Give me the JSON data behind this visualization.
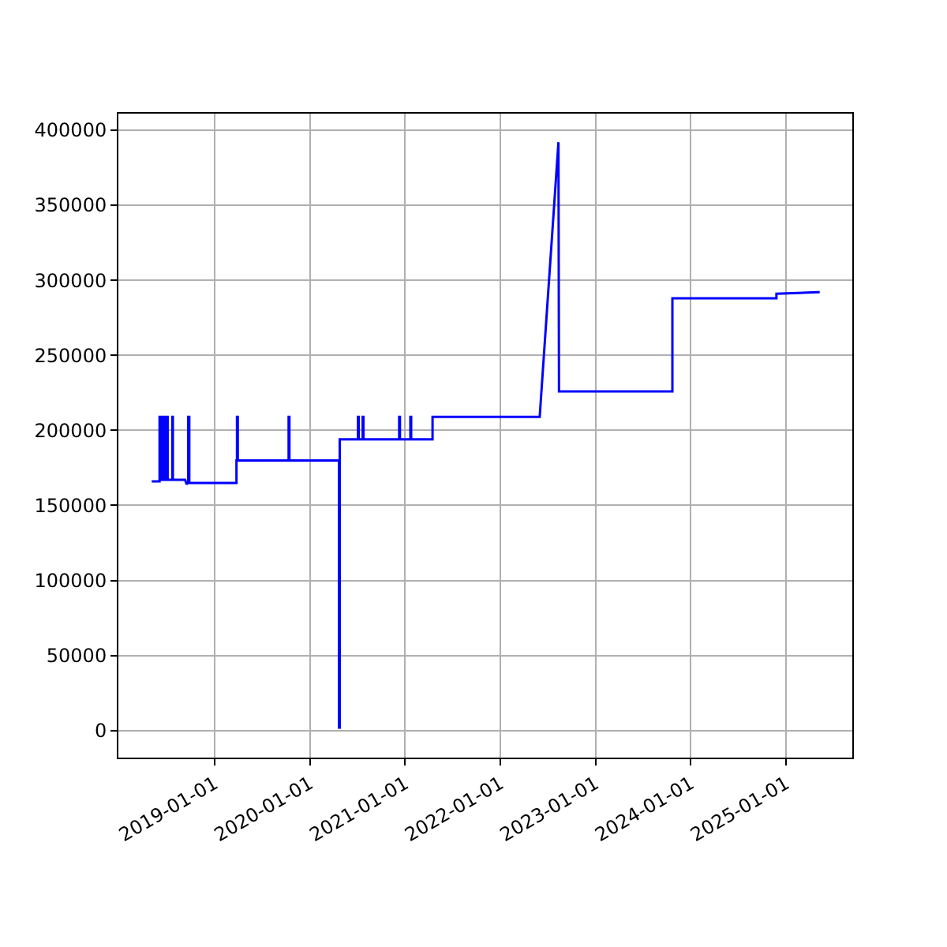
{
  "chart_data": {
    "type": "line",
    "x": [
      "2018-05-05",
      "2018-06-04",
      "2018-06-04",
      "2018-06-10",
      "2018-06-10",
      "2018-06-17",
      "2018-06-17",
      "2018-06-22",
      "2018-06-22",
      "2018-06-29",
      "2018-06-29",
      "2018-07-05",
      "2018-07-05",
      "2018-07-23",
      "2018-07-23",
      "2018-07-25",
      "2018-07-25",
      "2018-09-10",
      "2018-09-16",
      "2018-09-22",
      "2018-09-22",
      "2018-09-26",
      "2018-09-26",
      "2019-03-26",
      "2019-03-26",
      "2019-03-28",
      "2019-03-28",
      "2019-03-31",
      "2019-03-31",
      "2019-10-12",
      "2019-10-12",
      "2019-10-15",
      "2019-10-15",
      "2020-04-22",
      "2020-04-22",
      "2020-04-25",
      "2020-04-25",
      "2020-07-04",
      "2020-07-04",
      "2020-07-07",
      "2020-07-07",
      "2020-07-22",
      "2020-07-22",
      "2020-07-25",
      "2020-07-25",
      "2020-12-09",
      "2020-12-09",
      "2020-12-12",
      "2020-12-12",
      "2021-01-21",
      "2021-01-21",
      "2021-01-24",
      "2021-01-24",
      "2021-04-16",
      "2021-04-16",
      "2022-06-01",
      "2022-08-12",
      "2022-08-14",
      "2023-10-23",
      "2023-10-23",
      "2024-11-25",
      "2024-11-25",
      "2025-05-01",
      "2025-05-10"
    ],
    "series": [
      {
        "color": "#0000ff",
        "values": [
          166000,
          166000,
          209000,
          209000,
          167000,
          167000,
          209000,
          209000,
          167000,
          167000,
          209000,
          209000,
          167000,
          167000,
          209000,
          209000,
          167000,
          167000,
          164000,
          166000,
          209000,
          209000,
          165000,
          165000,
          180000,
          180000,
          209000,
          209000,
          180000,
          180000,
          209000,
          209000,
          180000,
          180000,
          2000,
          2000,
          194000,
          194000,
          209000,
          209000,
          194000,
          194000,
          209000,
          209000,
          194000,
          194000,
          209000,
          209000,
          194000,
          194000,
          209000,
          209000,
          194000,
          194000,
          209000,
          209000,
          392000,
          226000,
          226000,
          288000,
          288000,
          291000,
          292000,
          292000
        ]
      }
    ],
    "xlim": [
      "2017-12-28",
      "2025-09-12"
    ],
    "xticks": [
      "2019-01-01",
      "2020-01-01",
      "2021-01-01",
      "2022-01-01",
      "2023-01-01",
      "2024-01-01",
      "2025-01-01"
    ],
    "ylim": [
      -18000,
      411000
    ],
    "yticks": [
      0,
      50000,
      100000,
      150000,
      200000,
      250000,
      300000,
      350000,
      400000
    ],
    "grid": true,
    "line_style": "solid",
    "marker": "none"
  }
}
